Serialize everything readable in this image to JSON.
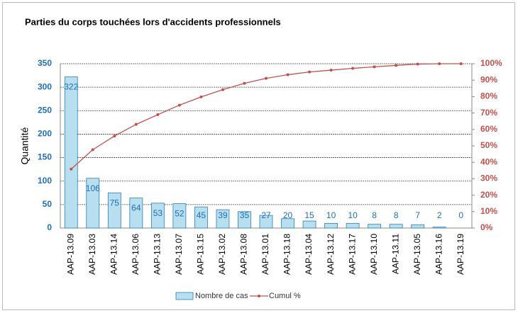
{
  "chart_data": {
    "type": "pareto",
    "title": "Parties du corps touchées lors d'accidents professionnels",
    "y_label": "Quantité",
    "categories": [
      "AAP-13.09",
      "AAP-13.03",
      "AAP-13.14",
      "AAP-13.06",
      "AAP-13.13",
      "AAP-13.07",
      "AAP-13.15",
      "AAP-13.02",
      "AAP-13.08",
      "AAP-13.01",
      "AAP-13.18",
      "AAP-13.04",
      "AAP-13.12",
      "AAP-13.17",
      "AAP-13.10",
      "AAP-13.11",
      "AAP-13.05",
      "AAP-13.16",
      "AAP-13.19"
    ],
    "series": [
      {
        "name": "Nombre de cas",
        "type": "bar",
        "color": "#b7dff0",
        "values": [
          322,
          106,
          75,
          64,
          53,
          52,
          45,
          39,
          35,
          27,
          20,
          15,
          10,
          10,
          8,
          8,
          7,
          2,
          0
        ]
      },
      {
        "name": "Cumul %",
        "type": "line",
        "axis": "y2",
        "color": "#c0504d",
        "values": [
          35.9,
          47.7,
          56.0,
          63.1,
          69.0,
          74.8,
          79.8,
          84.2,
          88.1,
          91.1,
          93.3,
          95.0,
          96.1,
          97.2,
          98.1,
          99.0,
          99.8,
          100,
          100
        ]
      }
    ],
    "ylim": [
      0,
      350
    ],
    "yticks": [
      0,
      50,
      100,
      150,
      200,
      250,
      300,
      350
    ],
    "y2lim": [
      0,
      100
    ],
    "y2ticks": [
      {
        "value": 0,
        "label": "0%"
      },
      {
        "value": 10,
        "label": "10%"
      },
      {
        "value": 20,
        "label": "20%"
      },
      {
        "value": 30,
        "label": "30%"
      },
      {
        "value": 40,
        "label": "40%"
      },
      {
        "value": 50,
        "label": "50%"
      },
      {
        "value": 60,
        "label": "60%"
      },
      {
        "value": 70,
        "label": "70%"
      },
      {
        "value": 80,
        "label": "80%"
      },
      {
        "value": 90,
        "label": "90%"
      },
      {
        "value": 100,
        "label": "100%"
      }
    ],
    "grid": true,
    "legend": "bottom"
  }
}
